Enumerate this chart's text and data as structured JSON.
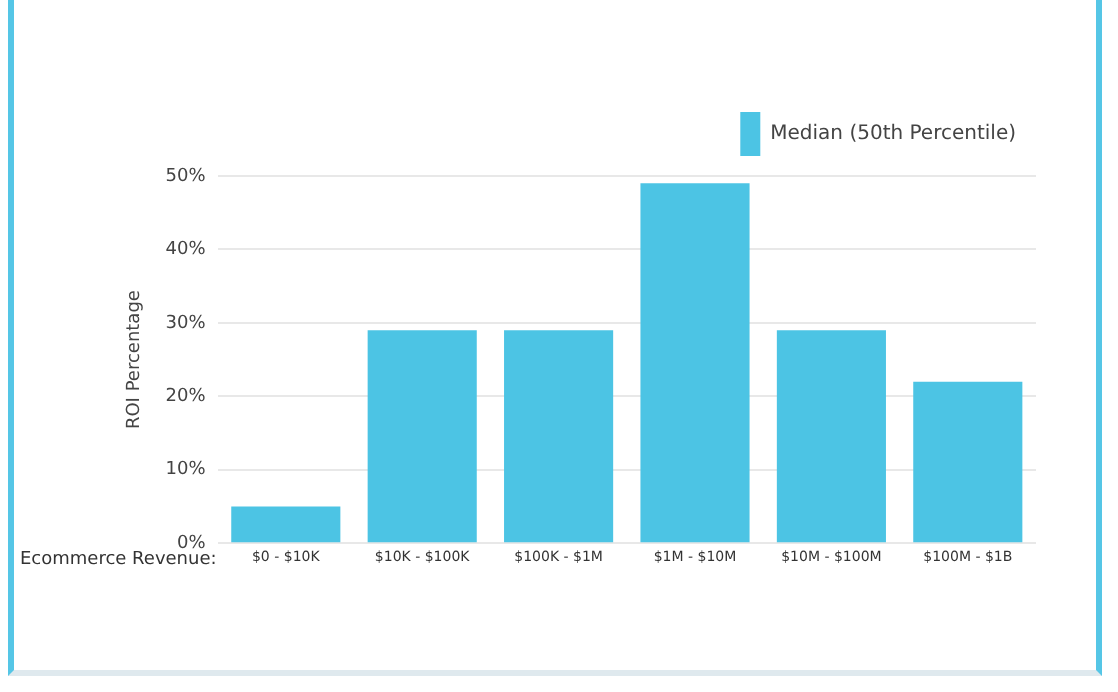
{
  "chart_data": {
    "type": "bar",
    "ylabel": "ROI Percentage",
    "xlabel": "Ecommerce Revenue:",
    "categories": [
      "$0 - $10K",
      "$10K - $100K",
      "$100K - $1M",
      "$1M - $10M",
      "$10M - $100M",
      "$100M - $1B"
    ],
    "series": [
      {
        "name": "Median (50th Percentile)",
        "color": "#4cc4e4",
        "values": [
          5,
          29,
          29,
          49,
          29,
          22
        ]
      }
    ],
    "ylim": [
      0,
      50
    ],
    "yticks": [
      {
        "value": 0,
        "label": "0%"
      },
      {
        "value": 10,
        "label": "10%"
      },
      {
        "value": 20,
        "label": "20%"
      },
      {
        "value": 30,
        "label": "30%"
      },
      {
        "value": 40,
        "label": "40%"
      },
      {
        "value": 50,
        "label": "50%"
      }
    ],
    "grid": "y",
    "legend": "top right"
  }
}
